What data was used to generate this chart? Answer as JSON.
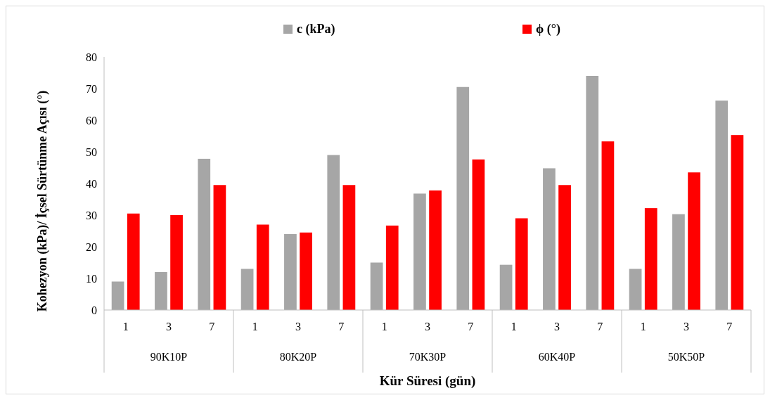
{
  "chart_data": {
    "type": "bar",
    "xlabel": "Kür Süresi (gün)",
    "ylabel": "Kohezyon (kPa)/ İçsel Sürtünme Açısı (°)",
    "categories": [
      "1",
      "3",
      "7",
      "1",
      "3",
      "7",
      "1",
      "3",
      "7",
      "1",
      "3",
      "7",
      "1",
      "3",
      "7"
    ],
    "annotations": [
      "90K10P",
      "80K20P",
      "70K30P",
      "60K40P",
      "50K50P"
    ],
    "series": [
      {
        "name": "c (kPa)",
        "color": "#a6a6a6",
        "values": [
          9,
          12,
          47.8,
          13,
          24,
          49,
          15,
          36.8,
          70.5,
          14.3,
          44.8,
          74,
          13,
          30.3,
          66.2
        ]
      },
      {
        "name": "ϕ (°)",
        "color": "#ff0000",
        "values": [
          30.5,
          30,
          39.5,
          27,
          24.5,
          39.5,
          26.7,
          37.8,
          47.6,
          29,
          39.5,
          53.3,
          32.2,
          43.5,
          55.3
        ]
      }
    ],
    "ylim": [
      0,
      80
    ],
    "yticks": [
      0,
      10,
      20,
      30,
      40,
      50,
      60,
      70,
      80
    ],
    "legend": "top"
  }
}
